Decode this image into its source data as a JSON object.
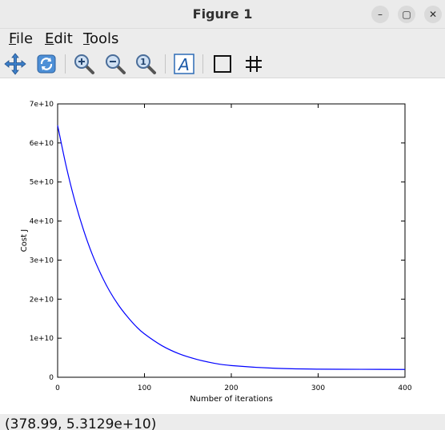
{
  "window": {
    "title": "Figure 1"
  },
  "controls": {
    "minimize": "–",
    "maximize": "▢",
    "close": "✕"
  },
  "menu": [
    {
      "u": "F",
      "rest": "ile"
    },
    {
      "u": "E",
      "rest": "dit"
    },
    {
      "u": "T",
      "rest": "ools"
    }
  ],
  "toolbar": {
    "icons": [
      "pan-icon",
      "rotate-icon",
      "zoom-in-icon",
      "zoom-out-icon",
      "zoom-reset-icon",
      "insert-text-icon",
      "axes-box-icon",
      "grid-icon"
    ],
    "text_tool_label": "A"
  },
  "chart_data": {
    "type": "line",
    "xlabel": "Number of iterations",
    "ylabel": "Cost J",
    "xlim": [
      0,
      400
    ],
    "ylim": [
      0,
      70000000000
    ],
    "xticks": [
      "0",
      "100",
      "200",
      "300",
      "400"
    ],
    "yticks": [
      "0",
      "1e+10",
      "2e+10",
      "3e+10",
      "4e+10",
      "5e+10",
      "6e+10",
      "7e+10"
    ],
    "grid": false,
    "line_color": "#0000ff",
    "series": [
      {
        "x": [
          0,
          10,
          20,
          30,
          40,
          50,
          60,
          70,
          80,
          90,
          100,
          120,
          140,
          160,
          180,
          200,
          250,
          300,
          350,
          400
        ],
        "y": [
          64500000000,
          53900000000,
          45000000000,
          37600000000,
          31400000000,
          26300000000,
          22000000000,
          18500000000,
          15600000000,
          13100000000,
          11100000000,
          8100000000,
          6000000000,
          4600000000,
          3600000000,
          3000000000,
          2300000000,
          2080000000,
          2030000000,
          2000000000
        ]
      }
    ]
  },
  "status": {
    "coords": "(378.99, 5.3129e+10)"
  }
}
